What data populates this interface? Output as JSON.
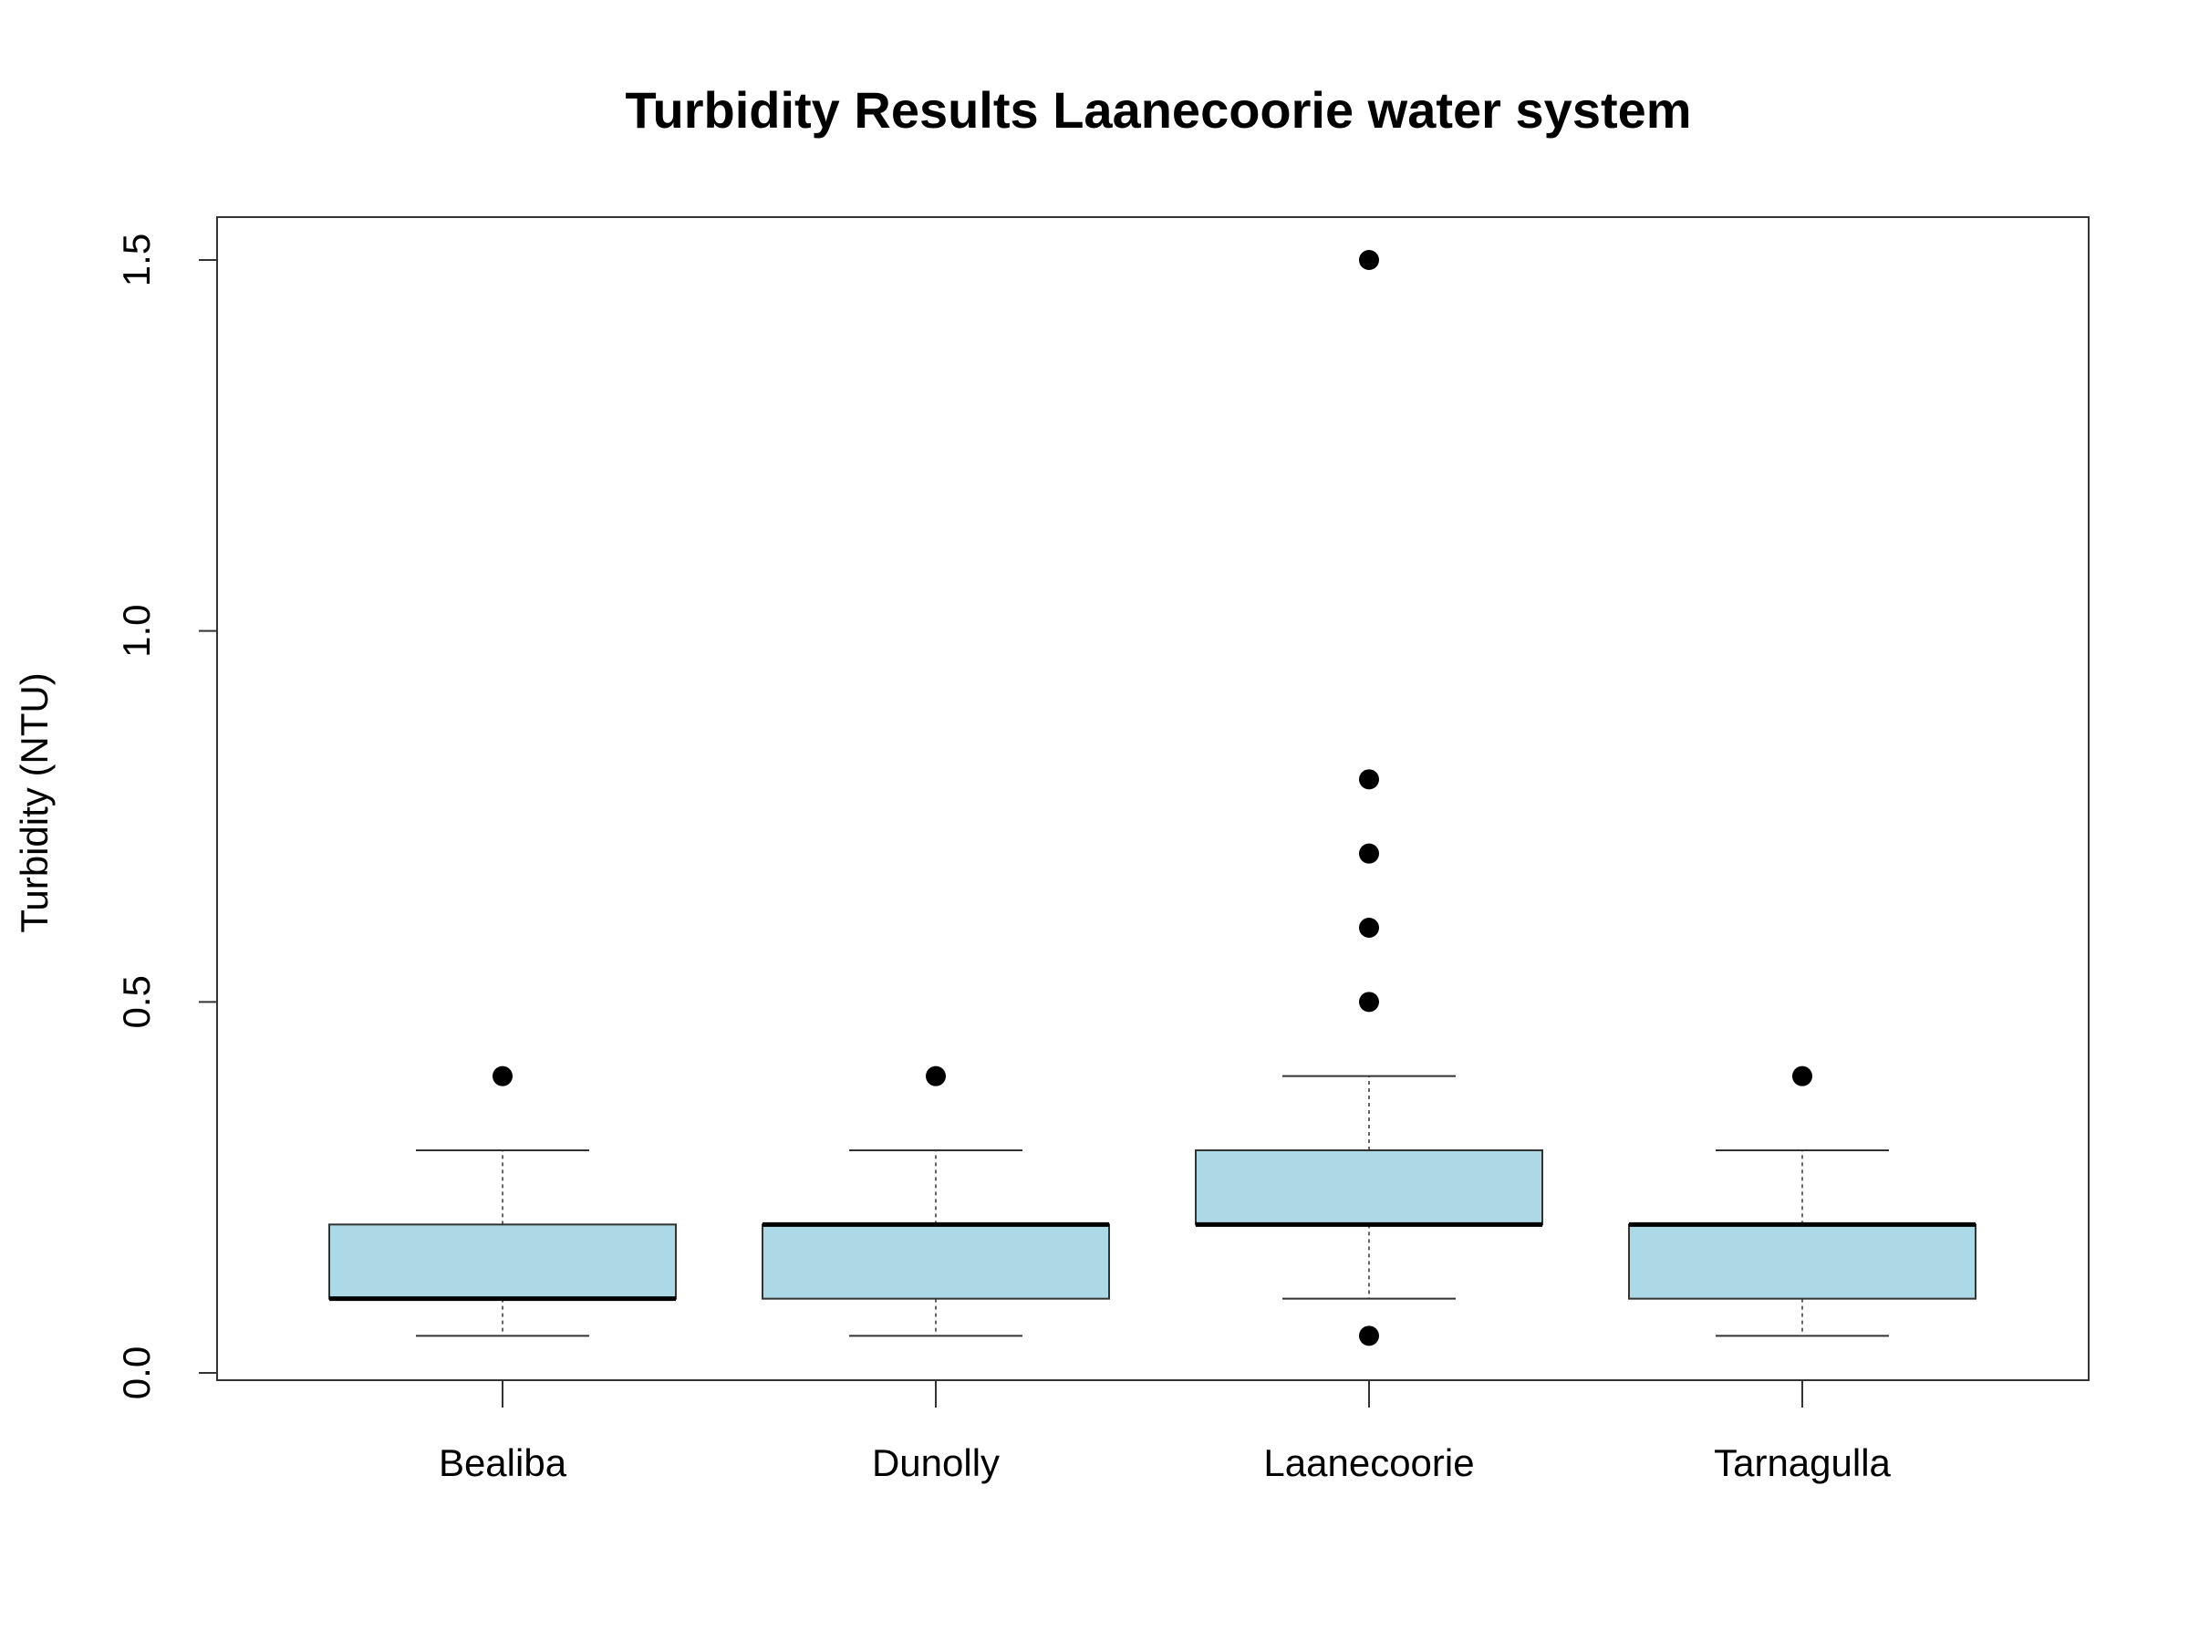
{
  "chart_data": {
    "type": "boxplot",
    "title": "Turbidity Results Laanecoorie water system",
    "xlabel": "",
    "ylabel": "Turbidity (NTU)",
    "ylim": [
      0,
      1.5
    ],
    "yticks": [
      "0.0",
      "0.5",
      "1.0",
      "1.5"
    ],
    "grid": false,
    "box_color": "#add8e6",
    "categories": [
      "Bealiba",
      "Dunolly",
      "Laanecoorie",
      "Tarnagulla"
    ],
    "boxes": [
      {
        "category": "Bealiba",
        "whisker_low": 0.05,
        "q1": 0.1,
        "median": 0.1,
        "q3": 0.2,
        "whisker_high": 0.3,
        "outliers": [
          0.4
        ]
      },
      {
        "category": "Dunolly",
        "whisker_low": 0.05,
        "q1": 0.1,
        "median": 0.2,
        "q3": 0.2,
        "whisker_high": 0.3,
        "outliers": [
          0.4
        ]
      },
      {
        "category": "Laanecoorie",
        "whisker_low": 0.1,
        "q1": 0.2,
        "median": 0.2,
        "q3": 0.3,
        "whisker_high": 0.4,
        "outliers": [
          0.05,
          0.5,
          0.6,
          0.7,
          0.8,
          1.5
        ]
      },
      {
        "category": "Tarnagulla",
        "whisker_low": 0.05,
        "q1": 0.1,
        "median": 0.2,
        "q3": 0.2,
        "whisker_high": 0.3,
        "outliers": [
          0.4
        ]
      }
    ]
  }
}
